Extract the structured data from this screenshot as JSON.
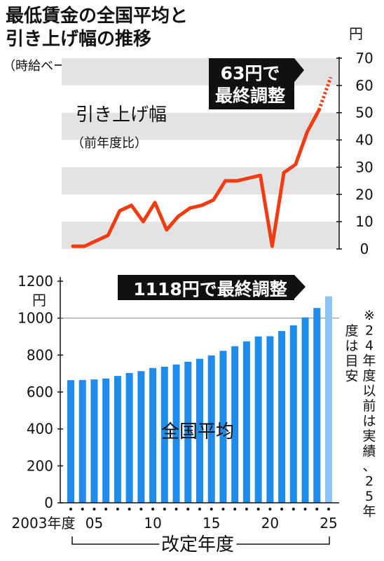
{
  "header": {
    "title_line1": "最低賃金の全国平均と",
    "title_line2": "引き上げ幅の推移",
    "subtitle": "（時給ベース）"
  },
  "colors": {
    "line": "#f03c12",
    "bar": "#1f8bea",
    "bar_forecast": "#8ec3f5",
    "band": "#e3e3e3",
    "callout_bg": "#111111"
  },
  "chart_data": [
    {
      "type": "line",
      "label": "引き上げ幅",
      "label_sub": "（前年度比）",
      "unit": "円",
      "ylim": [
        0,
        70
      ],
      "y_ticks": [
        "0",
        "10",
        "20",
        "30",
        "40",
        "50",
        "60",
        "70"
      ],
      "x": [
        2003,
        2004,
        2005,
        2006,
        2007,
        2008,
        2009,
        2010,
        2011,
        2012,
        2013,
        2014,
        2015,
        2016,
        2017,
        2018,
        2019,
        2020,
        2021,
        2022,
        2023,
        2024,
        2025
      ],
      "values": [
        1,
        1,
        3,
        5,
        14,
        16,
        10,
        17,
        7,
        12,
        15,
        16,
        18,
        25,
        25,
        26,
        27,
        1,
        28,
        31,
        43,
        51,
        63
      ],
      "forecast_from": 2024,
      "callout": [
        "63円で",
        "最終調整"
      ]
    },
    {
      "type": "bar",
      "label": "全国平均",
      "unit": "円",
      "ylim": [
        0,
        1200
      ],
      "y_ticks": [
        "0",
        "200",
        "400",
        "600",
        "800",
        "1000",
        "1200"
      ],
      "reference_line": 1000,
      "categories": [
        2003,
        2004,
        2005,
        2006,
        2007,
        2008,
        2009,
        2010,
        2011,
        2012,
        2013,
        2014,
        2015,
        2016,
        2017,
        2018,
        2019,
        2020,
        2021,
        2022,
        2023,
        2024,
        2025
      ],
      "values": [
        664,
        665,
        668,
        673,
        687,
        703,
        713,
        730,
        737,
        749,
        764,
        780,
        798,
        823,
        848,
        874,
        901,
        902,
        930,
        961,
        1004,
        1055,
        1118
      ],
      "forecast_categories": [
        2025
      ],
      "x_tick_labels": [
        "2003年度",
        "05",
        "10",
        "15",
        "20",
        "25"
      ],
      "x_axis_title": "改定年度",
      "callout": "1118円で最終調整"
    }
  ],
  "note": "※24年度以前は実績、25年度は目安"
}
